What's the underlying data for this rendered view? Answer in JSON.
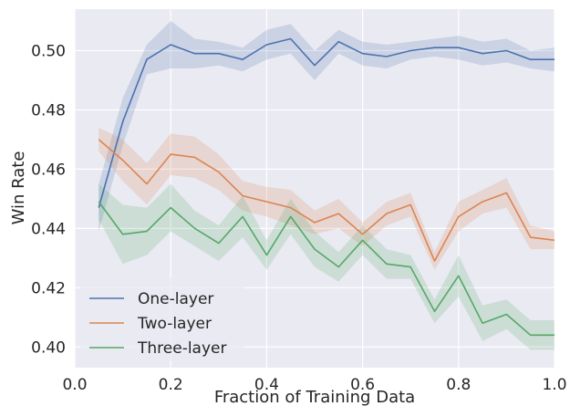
{
  "chart_data": {
    "type": "line",
    "xlabel": "Fraction of Training Data",
    "ylabel": "Win Rate",
    "xlim": [
      0.0,
      1.0
    ],
    "ylim": [
      0.393,
      0.514
    ],
    "x_ticks": [
      "0.0",
      "0.2",
      "0.4",
      "0.6",
      "0.8",
      "1.0"
    ],
    "y_ticks": [
      "0.40",
      "0.42",
      "0.44",
      "0.46",
      "0.48",
      "0.50"
    ],
    "grid": true,
    "legend_position": "lower-left",
    "background_color": "#eaeaf2",
    "x": [
      0.05,
      0.1,
      0.15,
      0.2,
      0.25,
      0.3,
      0.35,
      0.4,
      0.45,
      0.5,
      0.55,
      0.6,
      0.65,
      0.7,
      0.75,
      0.8,
      0.85,
      0.9,
      0.95,
      1.0
    ],
    "series": [
      {
        "name": "One-layer",
        "color": "#4c72b0",
        "values": [
          0.447,
          0.476,
          0.497,
          0.502,
          0.499,
          0.499,
          0.497,
          0.502,
          0.504,
          0.495,
          0.503,
          0.499,
          0.498,
          0.5,
          0.501,
          0.501,
          0.499,
          0.5,
          0.497,
          0.497
        ],
        "band": [
          0.008,
          0.008,
          0.005,
          0.008,
          0.005,
          0.004,
          0.004,
          0.005,
          0.005,
          0.005,
          0.004,
          0.004,
          0.004,
          0.003,
          0.003,
          0.004,
          0.004,
          0.004,
          0.003,
          0.004
        ]
      },
      {
        "name": "Two-layer",
        "color": "#dd8452",
        "values": [
          0.47,
          0.463,
          0.455,
          0.465,
          0.464,
          0.459,
          0.451,
          0.449,
          0.447,
          0.442,
          0.445,
          0.438,
          0.445,
          0.448,
          0.429,
          0.444,
          0.449,
          0.452,
          0.437,
          0.436
        ],
        "band": [
          0.004,
          0.007,
          0.007,
          0.007,
          0.007,
          0.006,
          0.005,
          0.005,
          0.006,
          0.004,
          0.005,
          0.004,
          0.004,
          0.004,
          0.003,
          0.005,
          0.004,
          0.005,
          0.004,
          0.003
        ]
      },
      {
        "name": "Three-layer",
        "color": "#55a868",
        "values": [
          0.449,
          0.438,
          0.439,
          0.447,
          0.44,
          0.435,
          0.444,
          0.431,
          0.444,
          0.433,
          0.427,
          0.436,
          0.428,
          0.427,
          0.412,
          0.424,
          0.408,
          0.411,
          0.404,
          0.404
        ],
        "band": [
          0.006,
          0.01,
          0.008,
          0.008,
          0.006,
          0.006,
          0.007,
          0.005,
          0.006,
          0.006,
          0.005,
          0.005,
          0.005,
          0.004,
          0.004,
          0.007,
          0.006,
          0.005,
          0.005,
          0.005
        ]
      }
    ]
  }
}
